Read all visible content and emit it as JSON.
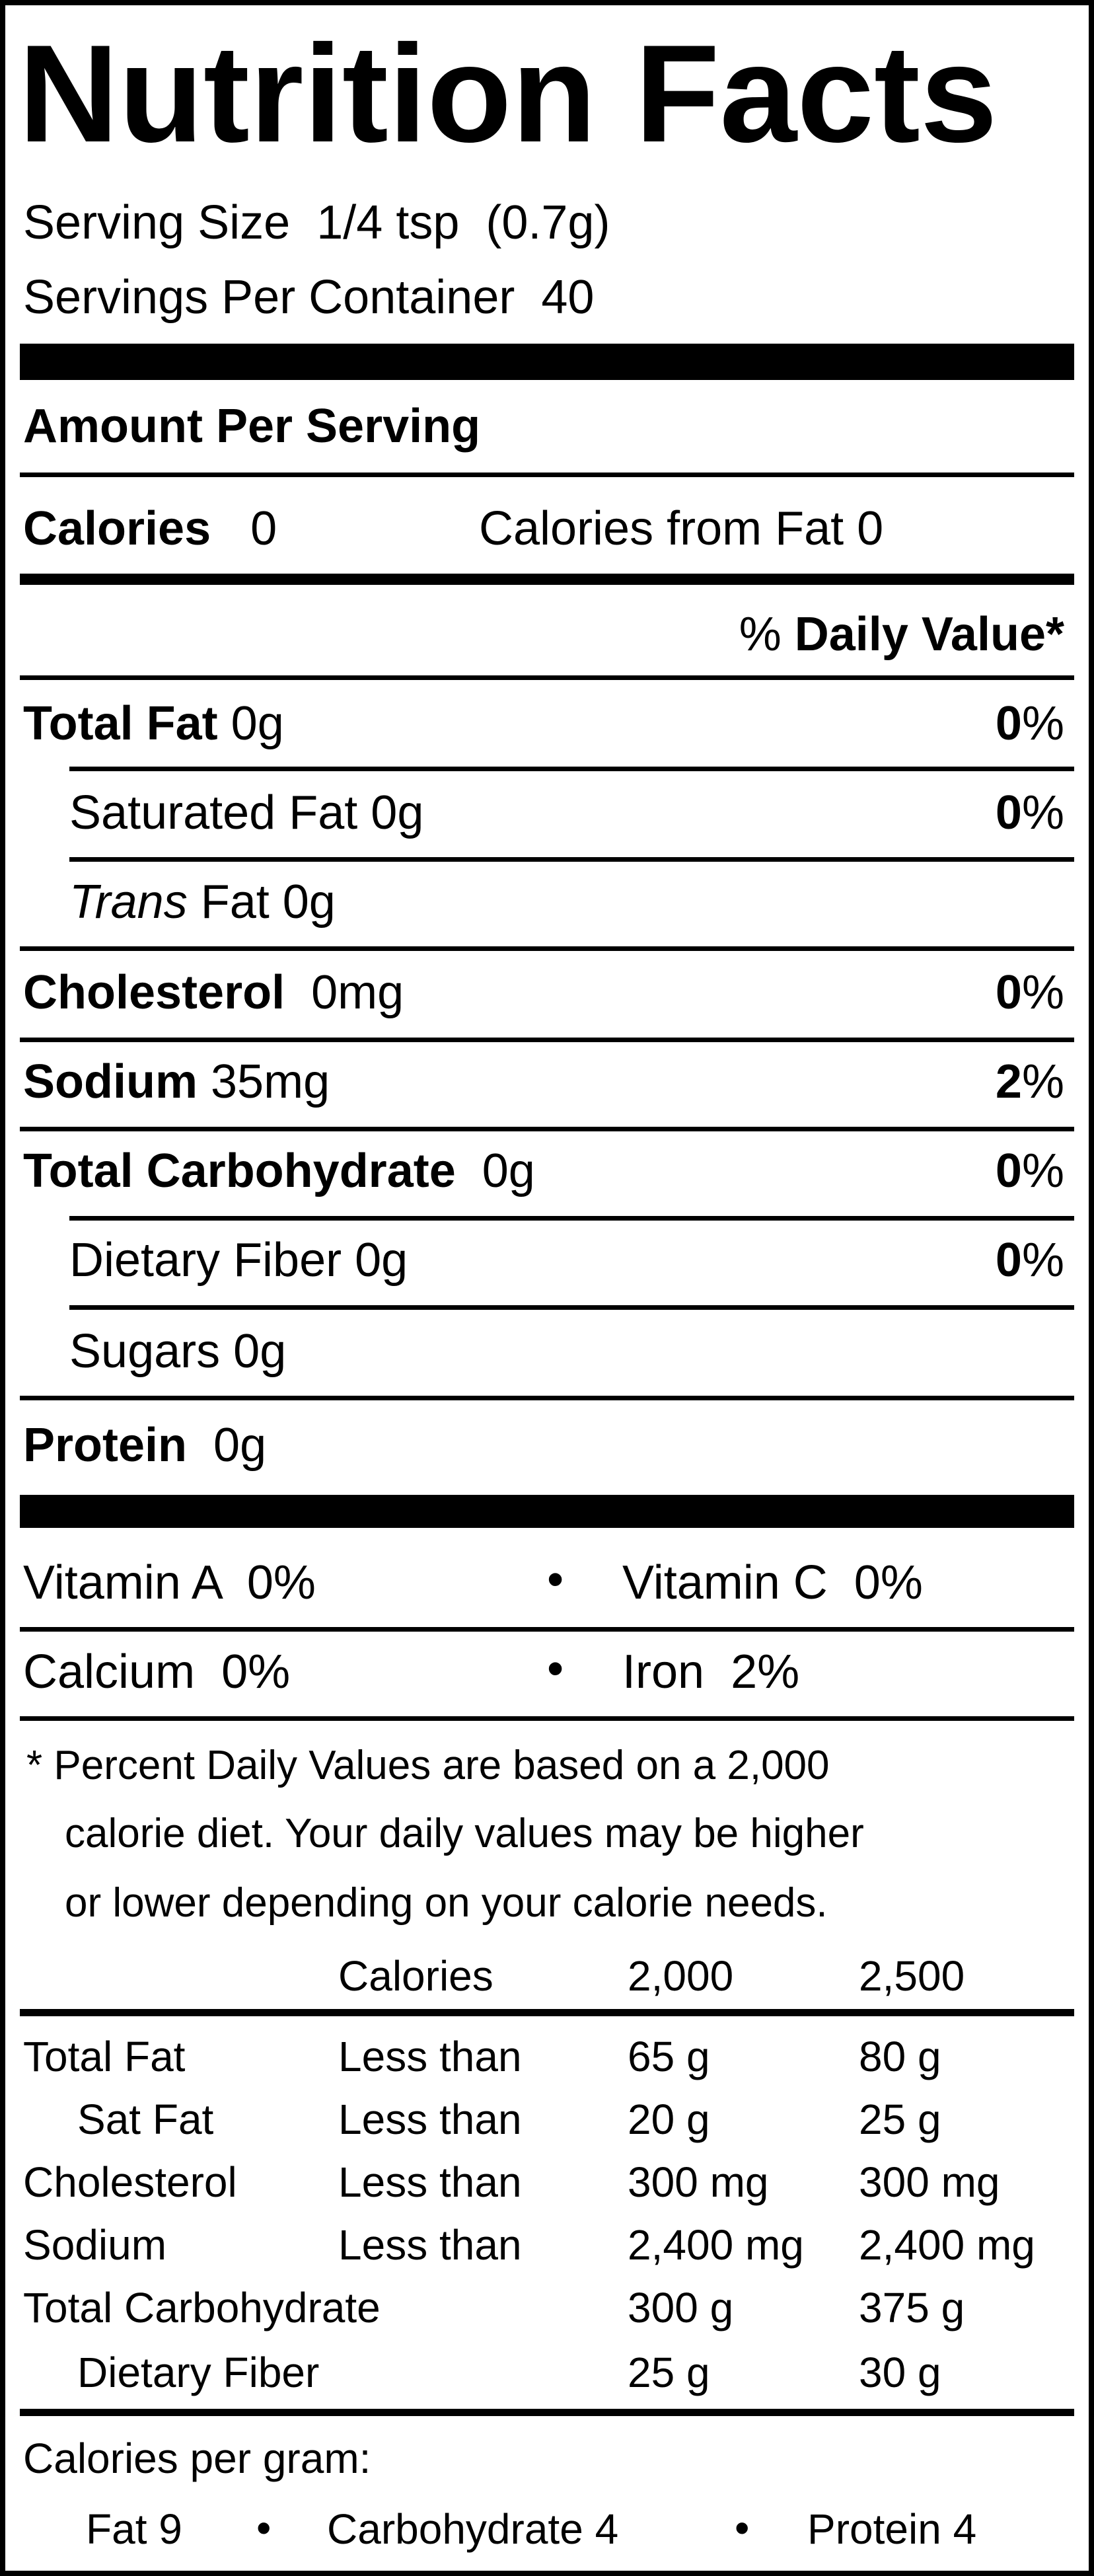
{
  "title": "Nutrition Facts",
  "serving": {
    "size_label": "Serving Size",
    "size_value": "1/4 tsp  (0.7g)",
    "per_container_label": "Servings Per Container",
    "per_container_value": "40"
  },
  "amount_per_serving": "Amount Per Serving",
  "calories": {
    "label": "Calories",
    "value": "0",
    "from_fat_label": "Calories from Fat",
    "from_fat_value": "0"
  },
  "daily_value_header": {
    "pct": "%",
    "label": "Daily Value*"
  },
  "nutrients": [
    {
      "label": "Total Fat",
      "amount": "0g",
      "dv": "0",
      "unit": "%"
    },
    {
      "label": "Saturated Fat",
      "amount": "0g",
      "dv": "0",
      "unit": "%"
    },
    {
      "label": "Trans",
      "label_rest": "Fat",
      "amount": "0g"
    },
    {
      "label": "Cholesterol",
      "amount": "0mg",
      "dv": "0",
      "unit": "%"
    },
    {
      "label": "Sodium",
      "amount": "35mg",
      "dv": "2",
      "unit": "%"
    },
    {
      "label": "Total Carbohydrate",
      "amount": "0g",
      "dv": "0",
      "unit": "%"
    },
    {
      "label": "Dietary Fiber",
      "amount": "0g",
      "dv": "0",
      "unit": "%"
    },
    {
      "label": "Sugars",
      "amount": "0g"
    },
    {
      "label": "Protein",
      "amount": "0g"
    }
  ],
  "vitamins": [
    {
      "label": "Vitamin A",
      "value": "0%"
    },
    {
      "label": "Vitamin C",
      "value": "0%"
    },
    {
      "label": "Calcium",
      "value": "0%"
    },
    {
      "label": "Iron",
      "value": "2%"
    }
  ],
  "bullet": "•",
  "footnote": [
    "* Percent Daily Values are based on a 2,000",
    "calorie diet. Your daily values may be higher",
    "or lower depending on your calorie needs."
  ],
  "dv_table": {
    "header": [
      "Calories",
      "2,000",
      "2,500"
    ],
    "rows": [
      [
        "Total Fat",
        "Less than",
        "65 g",
        "80 g"
      ],
      [
        "Sat Fat",
        "Less than",
        "20 g",
        "25 g"
      ],
      [
        "Cholesterol",
        "Less than",
        "300 mg",
        "300 mg"
      ],
      [
        "Sodium",
        "Less than",
        "2,400 mg",
        "2,400 mg"
      ],
      [
        "Total Carbohydrate",
        "",
        "300 g",
        "375 g"
      ],
      [
        "Dietary Fiber",
        "",
        "25 g",
        "30 g"
      ]
    ]
  },
  "calories_per_gram": {
    "label": "Calories per gram:",
    "fat": "Fat 9",
    "carbohydrate": "Carbohydrate 4",
    "protein": "Protein 4"
  }
}
